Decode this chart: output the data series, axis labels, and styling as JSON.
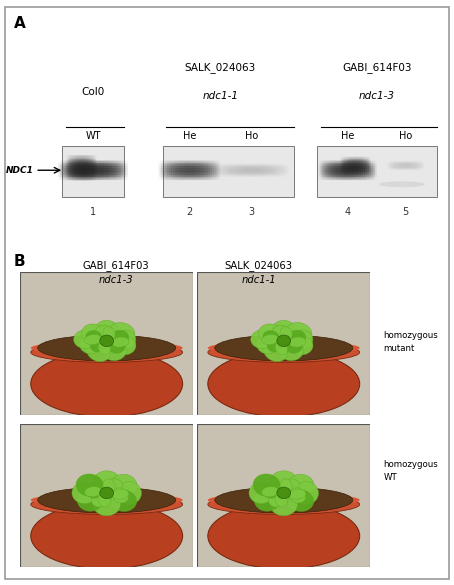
{
  "figure_bg": "#ffffff",
  "panel_A_label": "A",
  "panel_B_label": "B",
  "col0_label": "Col0",
  "salk_label": "SALK_024063",
  "salk_italic": "ndc1-1",
  "gabi_label": "GABI_614F03",
  "gabi_italic": "ndc1-3",
  "wt_label": "WT",
  "he_label": "He",
  "ho_label": "Ho",
  "ndc1_label": "NDC1",
  "lane_numbers": [
    "1",
    "2",
    "3",
    "4",
    "5"
  ],
  "panel_B_left_label": "GABI_614F03",
  "panel_B_left_italic": "ndc1-3",
  "panel_B_right_label": "SALK_024063",
  "panel_B_right_italic": "ndc1-1",
  "homozygous_mutant": "homozygous\nmutant",
  "homozygous_wt": "homozygous\nWT",
  "blot_bg": "#e0e0e0",
  "pot_color": "#b84020",
  "soil_color": "#5a3a1a",
  "plant_green_bright": "#7dc940",
  "plant_green_mid": "#5aab20",
  "plant_green_dark": "#3a8010"
}
